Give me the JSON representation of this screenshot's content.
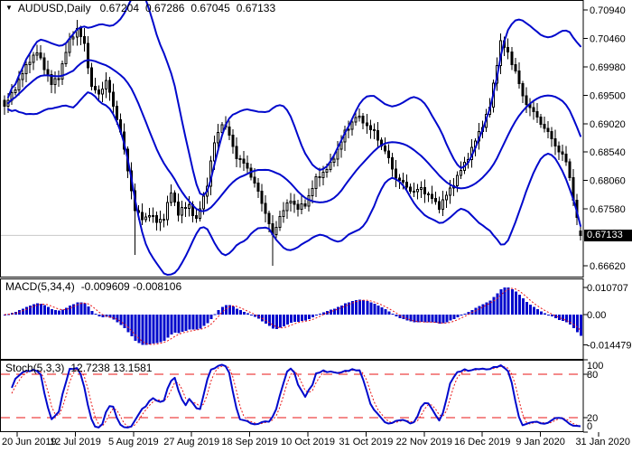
{
  "header": {
    "marker_icon": "▼",
    "symbol_period": "AUDUSD,Daily",
    "open": "0.67204",
    "high": "0.67286",
    "low": "0.67045",
    "close": "0.67133"
  },
  "colors": {
    "background": "#ffffff",
    "frame": "#000000",
    "candle": "#000000",
    "candle_up_fill": "#ffffff",
    "candle_down_fill": "#000000",
    "bollinger": "#0008cc",
    "macd_bar": "#0008cc",
    "stoch_main": "#0008cc",
    "signal_red": "#e81414",
    "level_red": "#e81414",
    "price_line": "#c8c8c8",
    "badge_bg": "#000000",
    "badge_text": "#ffffff",
    "text": "#000000"
  },
  "chart_data": {
    "type": "candlestick",
    "symbol": "AUDUSD",
    "timeframe": "Daily",
    "candle_count": 160,
    "displayed_ohlc": {
      "open": 0.67204,
      "high": 0.67286,
      "low": 0.67045,
      "close": 0.67133
    },
    "price_axis": {
      "tick_labels": [
        "0.70940",
        "0.70460",
        "0.69980",
        "0.69500",
        "0.69020",
        "0.68540",
        "0.68060",
        "0.67580",
        "0.66620"
      ],
      "last_price": "0.67133"
    },
    "x_axis": {
      "date_labels": [
        "20 Jun 2019",
        "12 Jul 2019",
        "5 Aug 2019",
        "27 Aug 2019",
        "18 Sep 2019",
        "10 Oct 2019",
        "31 Oct 2019",
        "22 Nov 2019",
        "16 Dec 2019",
        "9 Jan 2020",
        "31 Jan 2020"
      ]
    },
    "price_path_anchors": [
      [
        0,
        0.693
      ],
      [
        2,
        0.6952
      ],
      [
        4,
        0.6975
      ],
      [
        7,
        0.701
      ],
      [
        9,
        0.7022
      ],
      [
        11,
        0.6998
      ],
      [
        13,
        0.6968
      ],
      [
        15,
        0.6982
      ],
      [
        18,
        0.7042
      ],
      [
        20,
        0.7062
      ],
      [
        22,
        0.7035
      ],
      [
        24,
        0.6965
      ],
      [
        26,
        0.695
      ],
      [
        28,
        0.6976
      ],
      [
        30,
        0.693
      ],
      [
        32,
        0.689
      ],
      [
        34,
        0.6822
      ],
      [
        36,
        0.6758
      ],
      [
        38,
        0.674
      ],
      [
        40,
        0.675
      ],
      [
        42,
        0.6736
      ],
      [
        44,
        0.6744
      ],
      [
        46,
        0.6786
      ],
      [
        48,
        0.6752
      ],
      [
        51,
        0.6764
      ],
      [
        53,
        0.6738
      ],
      [
        56,
        0.68
      ],
      [
        58,
        0.687
      ],
      [
        60,
        0.6904
      ],
      [
        62,
        0.6882
      ],
      [
        64,
        0.6846
      ],
      [
        67,
        0.6828
      ],
      [
        70,
        0.6786
      ],
      [
        72,
        0.6752
      ],
      [
        74,
        0.6712
      ],
      [
        76,
        0.6746
      ],
      [
        79,
        0.6774
      ],
      [
        81,
        0.6758
      ],
      [
        83,
        0.6766
      ],
      [
        86,
        0.6808
      ],
      [
        90,
        0.6832
      ],
      [
        94,
        0.6886
      ],
      [
        97,
        0.6914
      ],
      [
        99,
        0.6906
      ],
      [
        102,
        0.6886
      ],
      [
        105,
        0.6856
      ],
      [
        108,
        0.6812
      ],
      [
        111,
        0.6795
      ],
      [
        113,
        0.6786
      ],
      [
        115,
        0.6793
      ],
      [
        118,
        0.6775
      ],
      [
        120,
        0.6762
      ],
      [
        122,
        0.6781
      ],
      [
        124,
        0.6802
      ],
      [
        126,
        0.6823
      ],
      [
        128,
        0.6846
      ],
      [
        131,
        0.6886
      ],
      [
        134,
        0.693
      ],
      [
        136,
        0.7005
      ],
      [
        137,
        0.704
      ],
      [
        139,
        0.7021
      ],
      [
        141,
        0.699
      ],
      [
        143,
        0.6947
      ],
      [
        145,
        0.6929
      ],
      [
        147,
        0.6912
      ],
      [
        150,
        0.6886
      ],
      [
        153,
        0.6856
      ],
      [
        155,
        0.6838
      ],
      [
        156,
        0.6812
      ],
      [
        157,
        0.6775
      ],
      [
        158,
        0.674
      ],
      [
        159,
        0.67133
      ]
    ],
    "spike_lows": {
      "36": 0.668,
      "74": 0.6662
    },
    "indicators": [
      {
        "name": "Bollinger Bands",
        "period": 20,
        "deviation": 2
      },
      {
        "name": "MACD",
        "label": "MACD(5,34,4)",
        "params": [
          5,
          34,
          4
        ],
        "values_text": "-0.009609 -0.008106",
        "value_macd": -0.009609,
        "value_signal": -0.008106,
        "axis_labels": [
          "0.010707",
          "0.00",
          "-0.014479"
        ]
      },
      {
        "name": "Stochastic",
        "label": "Stoch(5,3,3)",
        "params": [
          5,
          3,
          3
        ],
        "values_text": "12.7238 13.1581",
        "value_k": 12.7238,
        "value_d": 13.1581,
        "axis_labels": [
          "100",
          "80",
          "20",
          "0"
        ],
        "axis_label_values": [
          100,
          80,
          20,
          0
        ],
        "levels": [
          80,
          20
        ]
      }
    ]
  }
}
